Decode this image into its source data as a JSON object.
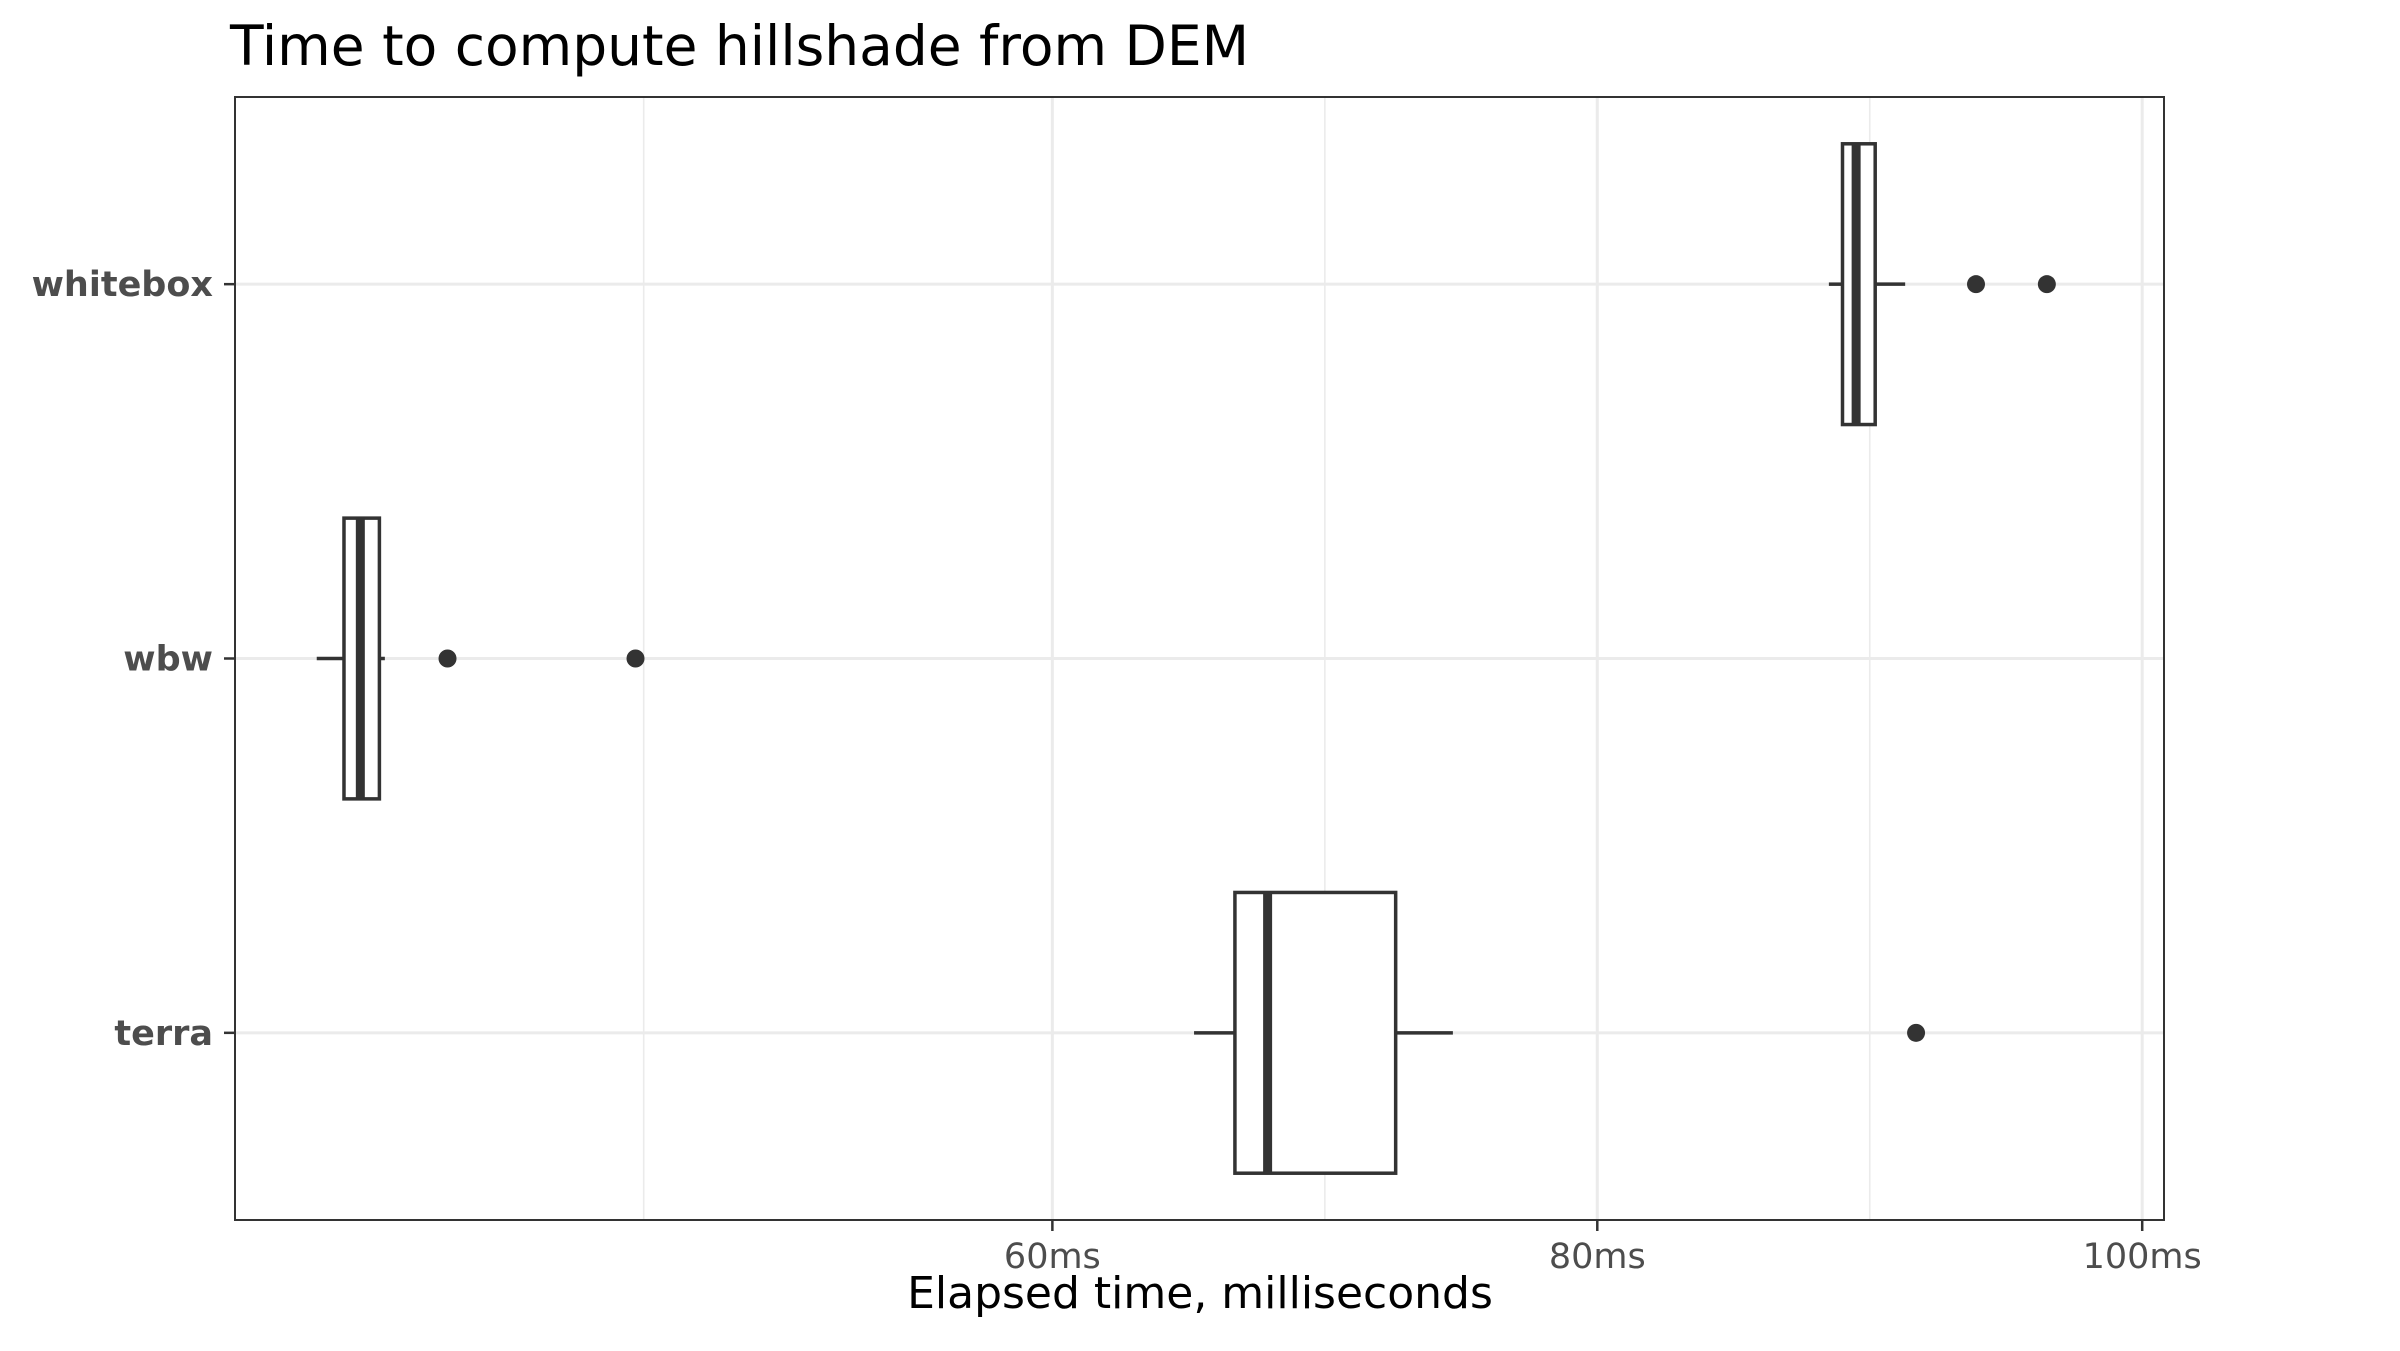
{
  "chart_data": {
    "type": "boxplot",
    "orientation": "horizontal",
    "title": "Time to compute hillshade from DEM",
    "xlabel": "Elapsed time, milliseconds",
    "ylabel": "",
    "xlim": [
      30,
      100.8
    ],
    "x_ticks": [
      60,
      80,
      100
    ],
    "x_tick_labels": [
      "60ms",
      "80ms",
      "100ms"
    ],
    "x_minor_gridlines": [
      45,
      70,
      90
    ],
    "categories": [
      "terra",
      "wbw",
      "whitebox"
    ],
    "grid": true,
    "series": [
      {
        "category": "whitebox",
        "whisker_low": 88.5,
        "q1": 89.0,
        "median": 89.5,
        "q3": 90.2,
        "whisker_high": 91.3,
        "outliers": [
          93.9,
          96.5
        ]
      },
      {
        "category": "wbw",
        "whisker_low": 33.0,
        "q1": 34.0,
        "median": 34.6,
        "q3": 35.3,
        "whisker_high": 35.5,
        "outliers": [
          37.8,
          44.7
        ]
      },
      {
        "category": "terra",
        "whisker_low": 65.2,
        "q1": 66.7,
        "median": 67.9,
        "q3": 72.6,
        "whisker_high": 74.7,
        "outliers": [
          91.7
        ]
      }
    ],
    "colors": {
      "box_stroke": "#333333",
      "box_fill": "#ffffff",
      "grid": "#ebebeb",
      "panel_border": "#333333",
      "axis_text": "#4d4d4d",
      "title_text": "#000000"
    }
  }
}
